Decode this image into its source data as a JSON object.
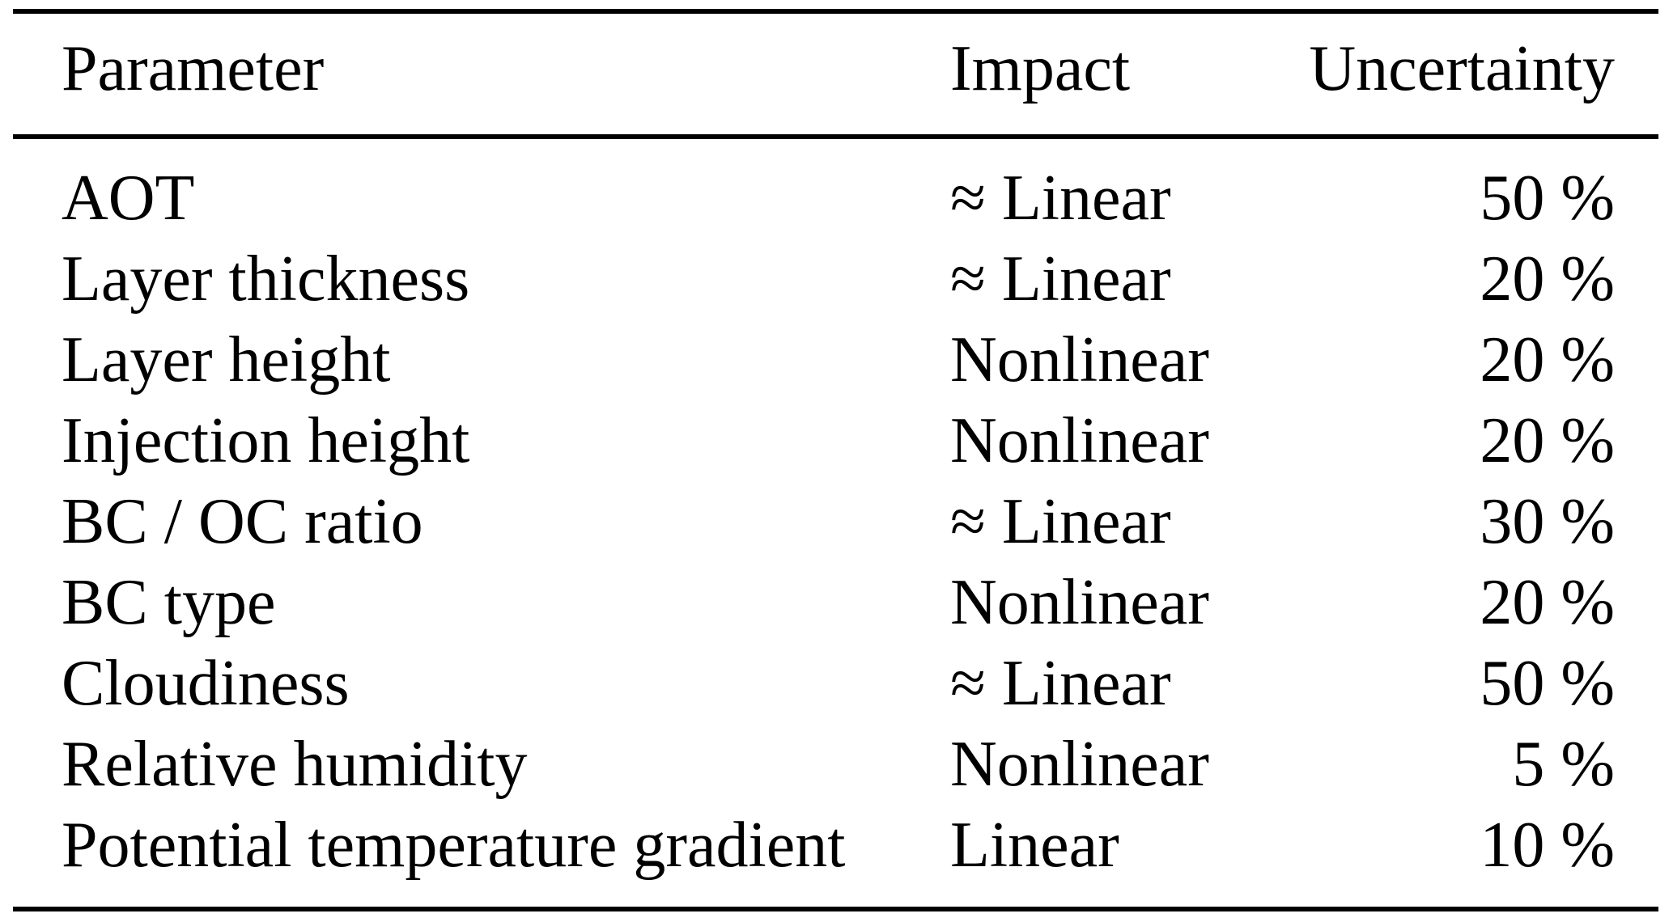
{
  "table": {
    "background_color": "#ffffff",
    "text_color": "#000000",
    "columns": {
      "parameter": "Parameter",
      "impact": "Impact",
      "uncertainty": "Uncertainty"
    },
    "rows": [
      {
        "parameter": "AOT",
        "impact": "≈ Linear",
        "uncertainty": "50 %"
      },
      {
        "parameter": "Layer thickness",
        "impact": "≈ Linear",
        "uncertainty": "20 %"
      },
      {
        "parameter": "Layer height",
        "impact": "Nonlinear",
        "uncertainty": "20 %"
      },
      {
        "parameter": "Injection height",
        "impact": "Nonlinear",
        "uncertainty": "20 %"
      },
      {
        "parameter": "BC / OC ratio",
        "impact": "≈ Linear",
        "uncertainty": "30 %"
      },
      {
        "parameter": "BC type",
        "impact": "Nonlinear",
        "uncertainty": "20 %"
      },
      {
        "parameter": "Cloudiness",
        "impact": "≈ Linear",
        "uncertainty": "50 %"
      },
      {
        "parameter": "Relative humidity",
        "impact": "Nonlinear",
        "uncertainty": "5 %"
      },
      {
        "parameter": "Potential temperature gradient",
        "impact": "Linear",
        "uncertainty": "10 %"
      }
    ]
  }
}
